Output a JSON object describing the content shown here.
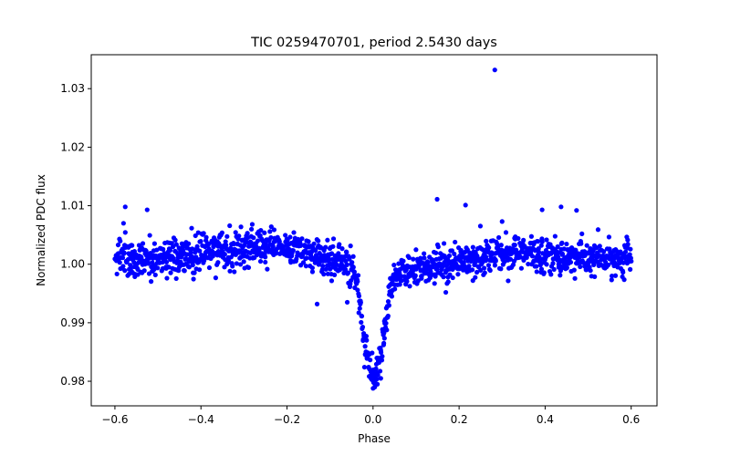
{
  "chart_data": {
    "type": "scatter",
    "title": "TIC 0259470701, period 2.5430 days",
    "xlabel": "Phase",
    "ylabel": "Normalized PDC flux",
    "xlim": [
      -0.655,
      0.66
    ],
    "ylim": [
      0.9758,
      1.0358
    ],
    "x_ticks": [
      -0.6,
      -0.4,
      -0.2,
      0.0,
      0.2,
      0.4,
      0.6
    ],
    "x_tick_labels": [
      "−0.6",
      "−0.4",
      "−0.2",
      "0.0",
      "0.2",
      "0.4",
      "0.6"
    ],
    "y_ticks": [
      0.98,
      0.99,
      1.0,
      1.01,
      1.02,
      1.03
    ],
    "y_tick_labels": [
      "0.98",
      "0.99",
      "1.00",
      "1.01",
      "1.02",
      "1.03"
    ],
    "grid": false,
    "marker_color": "#0000ff",
    "series": [
      {
        "x_range": [
          -0.6,
          0.6
        ],
        "baseline_model": "out-of-eclipse flux near 1.000 with ~0.0015 scatter; gentle hump to ~1.003 at phase -0.25; shallow dip to ~0.998 near phase -0.05 and +0.05; transit minimum ~0.981 at phase 0.0 with half-width ~0.04",
        "points": [
          [
            -0.6,
            1.001
          ],
          [
            -0.58,
            1.0015
          ],
          [
            -0.56,
            1.001
          ],
          [
            -0.54,
            1.0012
          ],
          [
            -0.52,
            1.0008
          ],
          [
            -0.5,
            1.0009
          ],
          [
            -0.48,
            1.001
          ],
          [
            -0.46,
            1.0012
          ],
          [
            -0.44,
            1.0013
          ],
          [
            -0.42,
            1.0015
          ],
          [
            -0.4,
            1.0018
          ],
          [
            -0.38,
            1.002
          ],
          [
            -0.36,
            1.0023
          ],
          [
            -0.34,
            1.0026
          ],
          [
            -0.32,
            1.0029
          ],
          [
            -0.3,
            1.0031
          ],
          [
            -0.28,
            1.0033
          ],
          [
            -0.26,
            1.0034
          ],
          [
            -0.24,
            1.0034
          ],
          [
            -0.22,
            1.0033
          ],
          [
            -0.2,
            1.003
          ],
          [
            -0.18,
            1.0027
          ],
          [
            -0.16,
            1.0022
          ],
          [
            -0.14,
            1.0018
          ],
          [
            -0.12,
            1.0014
          ],
          [
            -0.1,
            1.001
          ],
          [
            -0.08,
            1.0005
          ],
          [
            -0.06,
            1.0
          ],
          [
            -0.04,
            0.998
          ],
          [
            -0.02,
            0.986
          ],
          [
            0.0,
            0.981
          ],
          [
            0.02,
            0.985
          ],
          [
            0.04,
            0.996
          ],
          [
            0.06,
            0.9985
          ],
          [
            0.08,
            0.9988
          ],
          [
            0.1,
            0.999
          ],
          [
            0.12,
            0.9993
          ],
          [
            0.14,
            0.9996
          ],
          [
            0.16,
            0.9999
          ],
          [
            0.18,
            1.0002
          ],
          [
            0.2,
            1.0005
          ],
          [
            0.22,
            1.0008
          ],
          [
            0.24,
            1.0011
          ],
          [
            0.26,
            1.0014
          ],
          [
            0.28,
            1.0016
          ],
          [
            0.3,
            1.0018
          ],
          [
            0.32,
            1.0019
          ],
          [
            0.34,
            1.0019
          ],
          [
            0.36,
            1.0018
          ],
          [
            0.38,
            1.0017
          ],
          [
            0.4,
            1.0016
          ],
          [
            0.42,
            1.0015
          ],
          [
            0.44,
            1.0013
          ],
          [
            0.46,
            1.0012
          ],
          [
            0.48,
            1.0011
          ],
          [
            0.5,
            1.001
          ],
          [
            0.52,
            1.0009
          ],
          [
            0.54,
            1.0009
          ],
          [
            0.56,
            1.0009
          ],
          [
            0.58,
            1.001
          ],
          [
            0.6,
            1.0011
          ]
        ],
        "outliers": [
          [
            0.283,
            1.0332
          ],
          [
            0.149,
            1.0111
          ],
          [
            -0.576,
            1.0098
          ],
          [
            -0.525,
            1.0093
          ],
          [
            0.215,
            1.0101
          ],
          [
            0.3,
            1.0073
          ],
          [
            0.393,
            1.0093
          ],
          [
            0.437,
            1.0098
          ],
          [
            0.473,
            1.0092
          ],
          [
            -0.58,
            1.007
          ],
          [
            -0.558,
            0.9985
          ],
          [
            -0.398,
            1.0052
          ],
          [
            -0.13,
            0.9932
          ],
          [
            -0.06,
            0.9935
          ],
          [
            0.004,
            0.979
          ],
          [
            0.01,
            0.9795
          ],
          [
            -0.005,
            0.9805
          ],
          [
            0.018,
            0.9805
          ],
          [
            0.025,
            0.9865
          ],
          [
            -0.015,
            0.987
          ]
        ]
      }
    ]
  }
}
